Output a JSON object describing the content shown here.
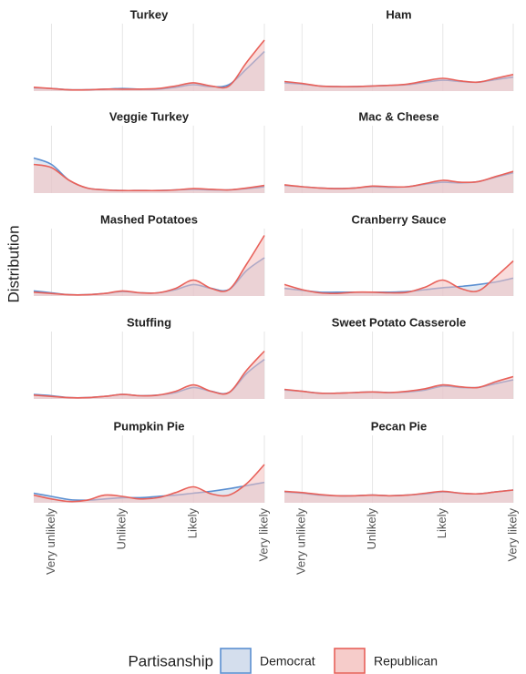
{
  "chart_data": {
    "type": "area",
    "ylabel": "Distribution",
    "legend_title": "Partisanship",
    "x": [
      0.75,
      1,
      1.25,
      1.5,
      1.75,
      2,
      2.25,
      2.5,
      2.75,
      3,
      3.25,
      3.5,
      3.75,
      4
    ],
    "xlim": [
      0.75,
      4
    ],
    "xticks": [
      {
        "value": 1,
        "label": "Very unlikely"
      },
      {
        "value": 2,
        "label": "Unlikely"
      },
      {
        "value": 3,
        "label": "Likely"
      },
      {
        "value": 4,
        "label": "Very likely"
      }
    ],
    "ylim": [
      0,
      1
    ],
    "grid": true,
    "legend": "bottom",
    "panels": [
      {
        "title": "Turkey",
        "series": [
          {
            "name": "Democrat",
            "color": "#5b8fd1",
            "fill": "#c9d6e8",
            "values": [
              0.05,
              0.04,
              0.02,
              0.02,
              0.03,
              0.04,
              0.03,
              0.03,
              0.06,
              0.1,
              0.07,
              0.1,
              0.35,
              0.62
            ]
          },
          {
            "name": "Republican",
            "color": "#e8615a",
            "fill": "#f4bfbd",
            "values": [
              0.06,
              0.04,
              0.02,
              0.02,
              0.03,
              0.03,
              0.03,
              0.04,
              0.08,
              0.13,
              0.08,
              0.08,
              0.45,
              0.8
            ]
          }
        ]
      },
      {
        "title": "Ham",
        "series": [
          {
            "name": "Democrat",
            "color": "#5b8fd1",
            "fill": "#c9d6e8",
            "values": [
              0.13,
              0.11,
              0.08,
              0.07,
              0.07,
              0.08,
              0.09,
              0.1,
              0.14,
              0.17,
              0.15,
              0.14,
              0.18,
              0.22
            ]
          },
          {
            "name": "Republican",
            "color": "#e8615a",
            "fill": "#f4bfbd",
            "values": [
              0.15,
              0.12,
              0.08,
              0.07,
              0.07,
              0.08,
              0.09,
              0.11,
              0.16,
              0.2,
              0.16,
              0.14,
              0.2,
              0.26
            ]
          }
        ]
      },
      {
        "title": "Veggie Turkey",
        "series": [
          {
            "name": "Democrat",
            "color": "#5b8fd1",
            "fill": "#c9d6e8",
            "values": [
              0.55,
              0.45,
              0.2,
              0.08,
              0.05,
              0.04,
              0.04,
              0.04,
              0.05,
              0.06,
              0.05,
              0.05,
              0.07,
              0.1
            ]
          },
          {
            "name": "Republican",
            "color": "#e8615a",
            "fill": "#f4bfbd",
            "values": [
              0.45,
              0.4,
              0.2,
              0.08,
              0.05,
              0.04,
              0.04,
              0.04,
              0.05,
              0.07,
              0.06,
              0.05,
              0.08,
              0.12
            ]
          }
        ]
      },
      {
        "title": "Mac & Cheese",
        "series": [
          {
            "name": "Democrat",
            "color": "#5b8fd1",
            "fill": "#c9d6e8",
            "values": [
              0.12,
              0.1,
              0.08,
              0.07,
              0.08,
              0.1,
              0.09,
              0.1,
              0.14,
              0.17,
              0.16,
              0.18,
              0.25,
              0.32
            ]
          },
          {
            "name": "Republican",
            "color": "#e8615a",
            "fill": "#f4bfbd",
            "values": [
              0.13,
              0.1,
              0.08,
              0.07,
              0.08,
              0.11,
              0.1,
              0.1,
              0.15,
              0.2,
              0.17,
              0.18,
              0.26,
              0.34
            ]
          }
        ]
      },
      {
        "title": "Mashed Potatoes",
        "series": [
          {
            "name": "Democrat",
            "color": "#5b8fd1",
            "fill": "#c9d6e8",
            "values": [
              0.08,
              0.05,
              0.02,
              0.02,
              0.04,
              0.07,
              0.05,
              0.05,
              0.1,
              0.18,
              0.12,
              0.1,
              0.4,
              0.6
            ]
          },
          {
            "name": "Republican",
            "color": "#e8615a",
            "fill": "#f4bfbd",
            "values": [
              0.06,
              0.04,
              0.02,
              0.02,
              0.04,
              0.08,
              0.05,
              0.05,
              0.12,
              0.25,
              0.12,
              0.1,
              0.5,
              0.95
            ]
          }
        ]
      },
      {
        "title": "Cranberry Sauce",
        "series": [
          {
            "name": "Democrat",
            "color": "#5b8fd1",
            "fill": "#c9d6e8",
            "values": [
              0.12,
              0.09,
              0.06,
              0.06,
              0.06,
              0.06,
              0.06,
              0.07,
              0.1,
              0.13,
              0.15,
              0.18,
              0.22,
              0.28
            ]
          },
          {
            "name": "Republican",
            "color": "#e8615a",
            "fill": "#f4bfbd",
            "values": [
              0.18,
              0.1,
              0.05,
              0.04,
              0.06,
              0.06,
              0.05,
              0.06,
              0.14,
              0.25,
              0.12,
              0.08,
              0.3,
              0.55
            ]
          }
        ]
      },
      {
        "title": "Stuffing",
        "series": [
          {
            "name": "Democrat",
            "color": "#5b8fd1",
            "fill": "#c9d6e8",
            "values": [
              0.07,
              0.05,
              0.02,
              0.02,
              0.04,
              0.07,
              0.05,
              0.06,
              0.1,
              0.18,
              0.12,
              0.1,
              0.4,
              0.62
            ]
          },
          {
            "name": "Republican",
            "color": "#e8615a",
            "fill": "#f4bfbd",
            "values": [
              0.06,
              0.04,
              0.02,
              0.02,
              0.04,
              0.07,
              0.05,
              0.06,
              0.12,
              0.22,
              0.12,
              0.1,
              0.45,
              0.75
            ]
          }
        ]
      },
      {
        "title": "Sweet Potato Casserole",
        "series": [
          {
            "name": "Democrat",
            "color": "#5b8fd1",
            "fill": "#c9d6e8",
            "values": [
              0.14,
              0.12,
              0.09,
              0.09,
              0.1,
              0.11,
              0.1,
              0.11,
              0.14,
              0.2,
              0.18,
              0.18,
              0.24,
              0.3
            ]
          },
          {
            "name": "Republican",
            "color": "#e8615a",
            "fill": "#f4bfbd",
            "values": [
              0.15,
              0.12,
              0.09,
              0.09,
              0.1,
              0.11,
              0.1,
              0.12,
              0.16,
              0.22,
              0.19,
              0.18,
              0.27,
              0.35
            ]
          }
        ]
      },
      {
        "title": "Pumpkin Pie",
        "series": [
          {
            "name": "Democrat",
            "color": "#5b8fd1",
            "fill": "#c9d6e8",
            "values": [
              0.15,
              0.1,
              0.05,
              0.04,
              0.06,
              0.08,
              0.08,
              0.1,
              0.12,
              0.15,
              0.18,
              0.22,
              0.27,
              0.32
            ]
          },
          {
            "name": "Republican",
            "color": "#e8615a",
            "fill": "#f4bfbd",
            "values": [
              0.12,
              0.06,
              0.02,
              0.04,
              0.12,
              0.1,
              0.06,
              0.08,
              0.16,
              0.25,
              0.14,
              0.12,
              0.3,
              0.6
            ]
          }
        ]
      },
      {
        "title": "Pecan Pie",
        "series": [
          {
            "name": "Democrat",
            "color": "#5b8fd1",
            "fill": "#c9d6e8",
            "values": [
              0.17,
              0.15,
              0.12,
              0.11,
              0.11,
              0.12,
              0.11,
              0.12,
              0.14,
              0.17,
              0.15,
              0.14,
              0.17,
              0.2
            ]
          },
          {
            "name": "Republican",
            "color": "#e8615a",
            "fill": "#f4bfbd",
            "values": [
              0.18,
              0.16,
              0.13,
              0.11,
              0.11,
              0.12,
              0.11,
              0.12,
              0.15,
              0.18,
              0.15,
              0.14,
              0.17,
              0.2
            ]
          }
        ]
      }
    ]
  }
}
